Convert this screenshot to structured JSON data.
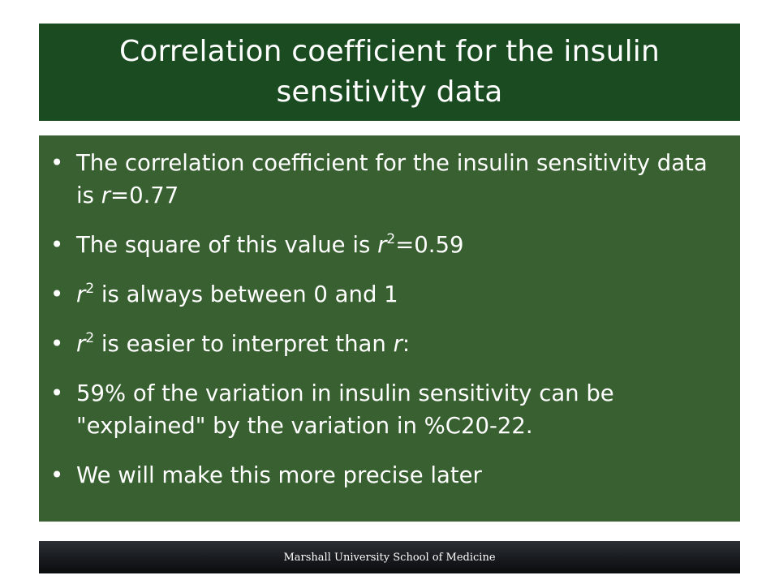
{
  "slide": {
    "title": "Correlation coefficient for the insulin sensitivity data",
    "bullet_marker": "•",
    "bullets": [
      {
        "pre": "The correlation coefficient for the insulin sensitivity data is ",
        "var": "r",
        "post": "=0.77"
      },
      {
        "pre": "The square of this value is ",
        "var": "r",
        "sup": "2",
        "post": "=0.59"
      },
      {
        "var": "r",
        "sup": "2",
        "post": " is always between 0 and 1"
      },
      {
        "var": "r",
        "sup": "2",
        "mid": " is easier to interpret than ",
        "var2": "r",
        "post": ":"
      },
      {
        "text": "59% of the variation in insulin sensitivity can be \"explained\" by the variation in %C20-22."
      },
      {
        "text": "We will make this more precise later"
      }
    ],
    "footer": "Marshall University School of Medicine"
  },
  "colors": {
    "title_bg": "#1b4b21",
    "content_bg": "#386030",
    "text": "#ffffff",
    "footer_bg": "#181b1e"
  }
}
